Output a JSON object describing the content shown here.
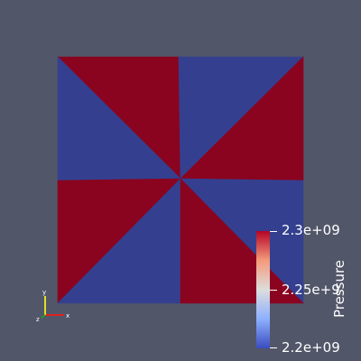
{
  "colors": {
    "background": "#525669",
    "high": "#8a0420",
    "low": "#34408f",
    "mid": "#dddddd",
    "axis_x": "#e02020",
    "axis_y": "#e0e020",
    "axis_z": "#20a020"
  },
  "color_legend": {
    "title": "Pressure",
    "max_label": "2.3e+09",
    "mid_label": "2.25e+9",
    "min_label": "2.2e+09"
  },
  "mesh": {
    "field": "Pressure",
    "cell_values": [
      "high",
      "low",
      "low",
      "high",
      "high",
      "low",
      "low",
      "high"
    ]
  },
  "orientation_axes": {
    "x_label": "x",
    "y_label": "y",
    "z_label": "z"
  }
}
